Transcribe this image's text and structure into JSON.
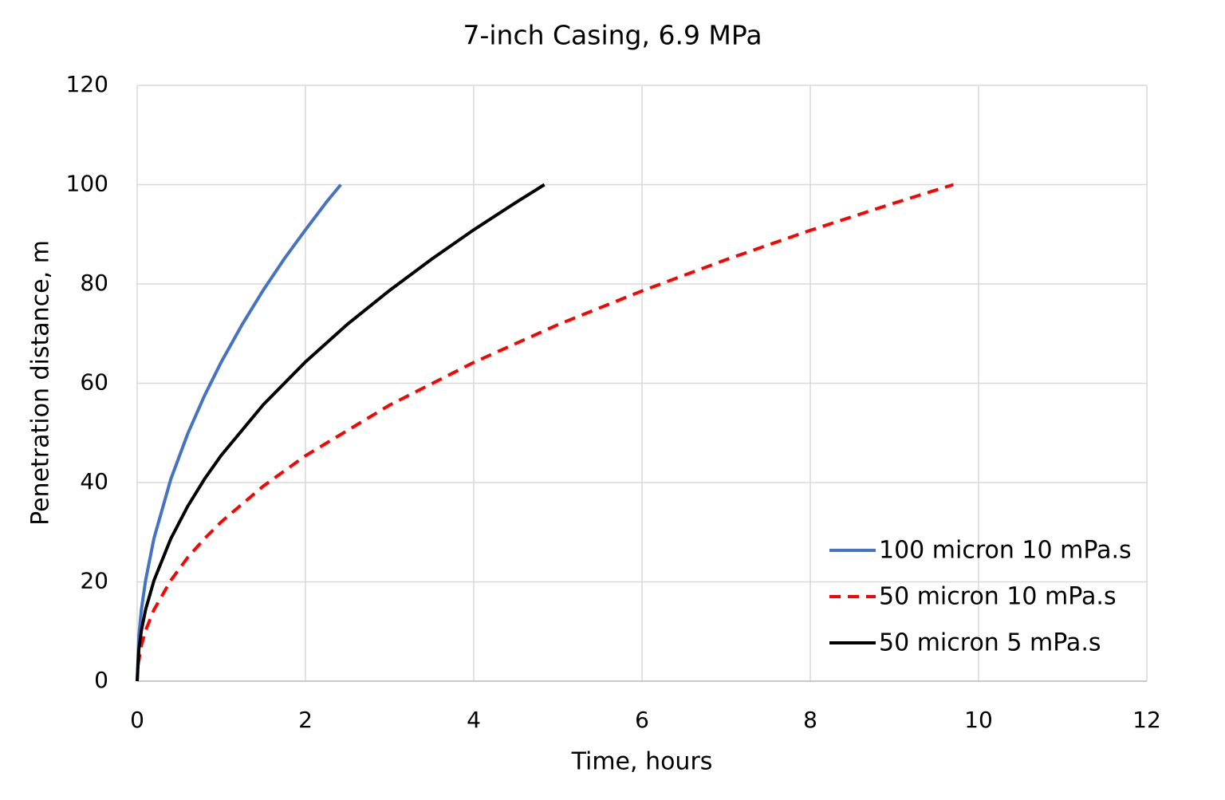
{
  "chart_data": {
    "type": "line",
    "title": "7-inch Casing, 6.9 MPa",
    "x_label": "Time, hours",
    "y_label": "Penetration distance, m",
    "xlim": [
      0,
      12
    ],
    "xticks": [
      0,
      2,
      4,
      6,
      8,
      10,
      12
    ],
    "ylim": [
      0,
      120
    ],
    "yticks": [
      0,
      20,
      40,
      60,
      80,
      100,
      120
    ],
    "grid": true,
    "legend": "lower right",
    "series": [
      {
        "name": "100 micron 10 mPa.s",
        "color": "#4472c4",
        "dash": "solid",
        "x": [
          0,
          0.02,
          0.05,
          0.1,
          0.2,
          0.4,
          0.6,
          0.8,
          1.0,
          1.25,
          1.5,
          1.75,
          2.0,
          2.25,
          2.42
        ],
        "values": [
          0,
          9.1,
          14.4,
          20.3,
          28.8,
          40.7,
          49.8,
          57.5,
          64.3,
          71.9,
          78.8,
          85.1,
          90.9,
          96.5,
          100
        ]
      },
      {
        "name": "50 micron 10 mPa.s",
        "color": "#ff0000",
        "dash": "dashed",
        "x": [
          0.01,
          0.05,
          0.1,
          0.2,
          0.4,
          0.6,
          0.8,
          1.0,
          1.5,
          2.0,
          3.0,
          4.0,
          5.0,
          6.0,
          7.0,
          8.0,
          9.0,
          9.7
        ],
        "values": [
          3.2,
          7.2,
          10.2,
          14.4,
          20.3,
          24.9,
          28.7,
          32.1,
          39.3,
          45.4,
          55.6,
          64.2,
          71.8,
          78.6,
          84.9,
          90.8,
          96.3,
          100
        ]
      },
      {
        "name": "50 micron 5 mPa.s",
        "color": "#000000",
        "dash": "solid",
        "x": [
          0,
          0.02,
          0.05,
          0.1,
          0.2,
          0.4,
          0.6,
          0.8,
          1.0,
          1.5,
          2.0,
          2.5,
          3.0,
          3.5,
          4.0,
          4.5,
          4.84
        ],
        "values": [
          0,
          6.4,
          10.2,
          14.4,
          20.3,
          28.7,
          35.2,
          40.7,
          45.5,
          55.7,
          64.3,
          71.9,
          78.7,
          85.0,
          90.9,
          96.4,
          100
        ]
      }
    ]
  }
}
